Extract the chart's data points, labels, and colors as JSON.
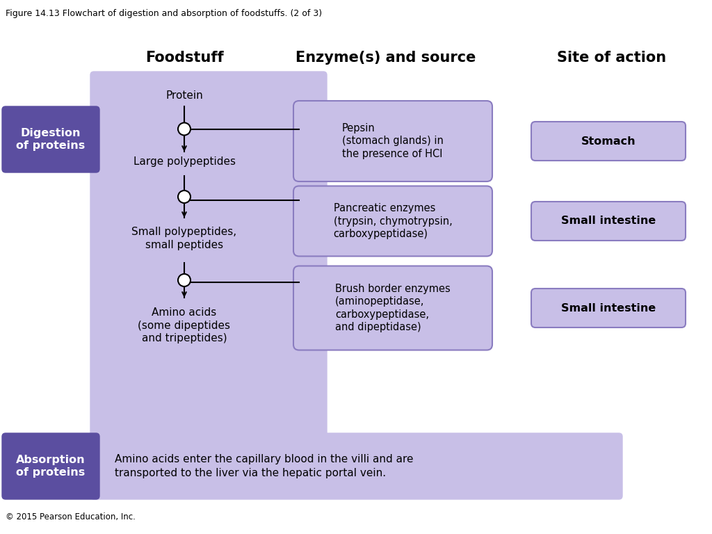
{
  "title": "Figure 14.13 Flowchart of digestion and absorption of foodstuffs. (2 of 3)",
  "copyright": "© 2015 Pearson Education, Inc.",
  "bg_color": "#ffffff",
  "header_foodstuff": "Foodstuff",
  "header_enzyme": "Enzyme(s) and source",
  "header_site": "Site of action",
  "digestion_label": "Digestion\nof proteins",
  "digestion_label_color": "#ffffff",
  "digestion_box_color": "#5b4ea0",
  "absorption_label": "Absorption\nof proteins",
  "absorption_label_color": "#ffffff",
  "absorption_box_color": "#5b4ea0",
  "absorption_text": "Amino acids enter the capillary blood in the villi and are\ntransported to the liver via the hepatic portal vein.",
  "main_bg_color": "#c8bfe7",
  "enzyme_box_color": "#c8bfe7",
  "site_box_color": "#c8bfe7",
  "foodstuff_items": [
    "Protein",
    "Large polypeptides",
    "Small polypeptides,\nsmall peptides",
    "Amino acids\n(some dipeptides\nand tripeptides)"
  ],
  "enzyme_items": [
    "Pepsin\n(stomach glands) in\nthe presence of HCl",
    "Pancreatic enzymes\n(trypsin, chymotrypsin,\ncarboxypeptidase)",
    "Brush border enzymes\n(aminopeptidase,\ncarboxypeptidase,\nand dipeptidase)"
  ],
  "site_items": [
    "Stomach",
    "Small intestine",
    "Small intestine"
  ]
}
